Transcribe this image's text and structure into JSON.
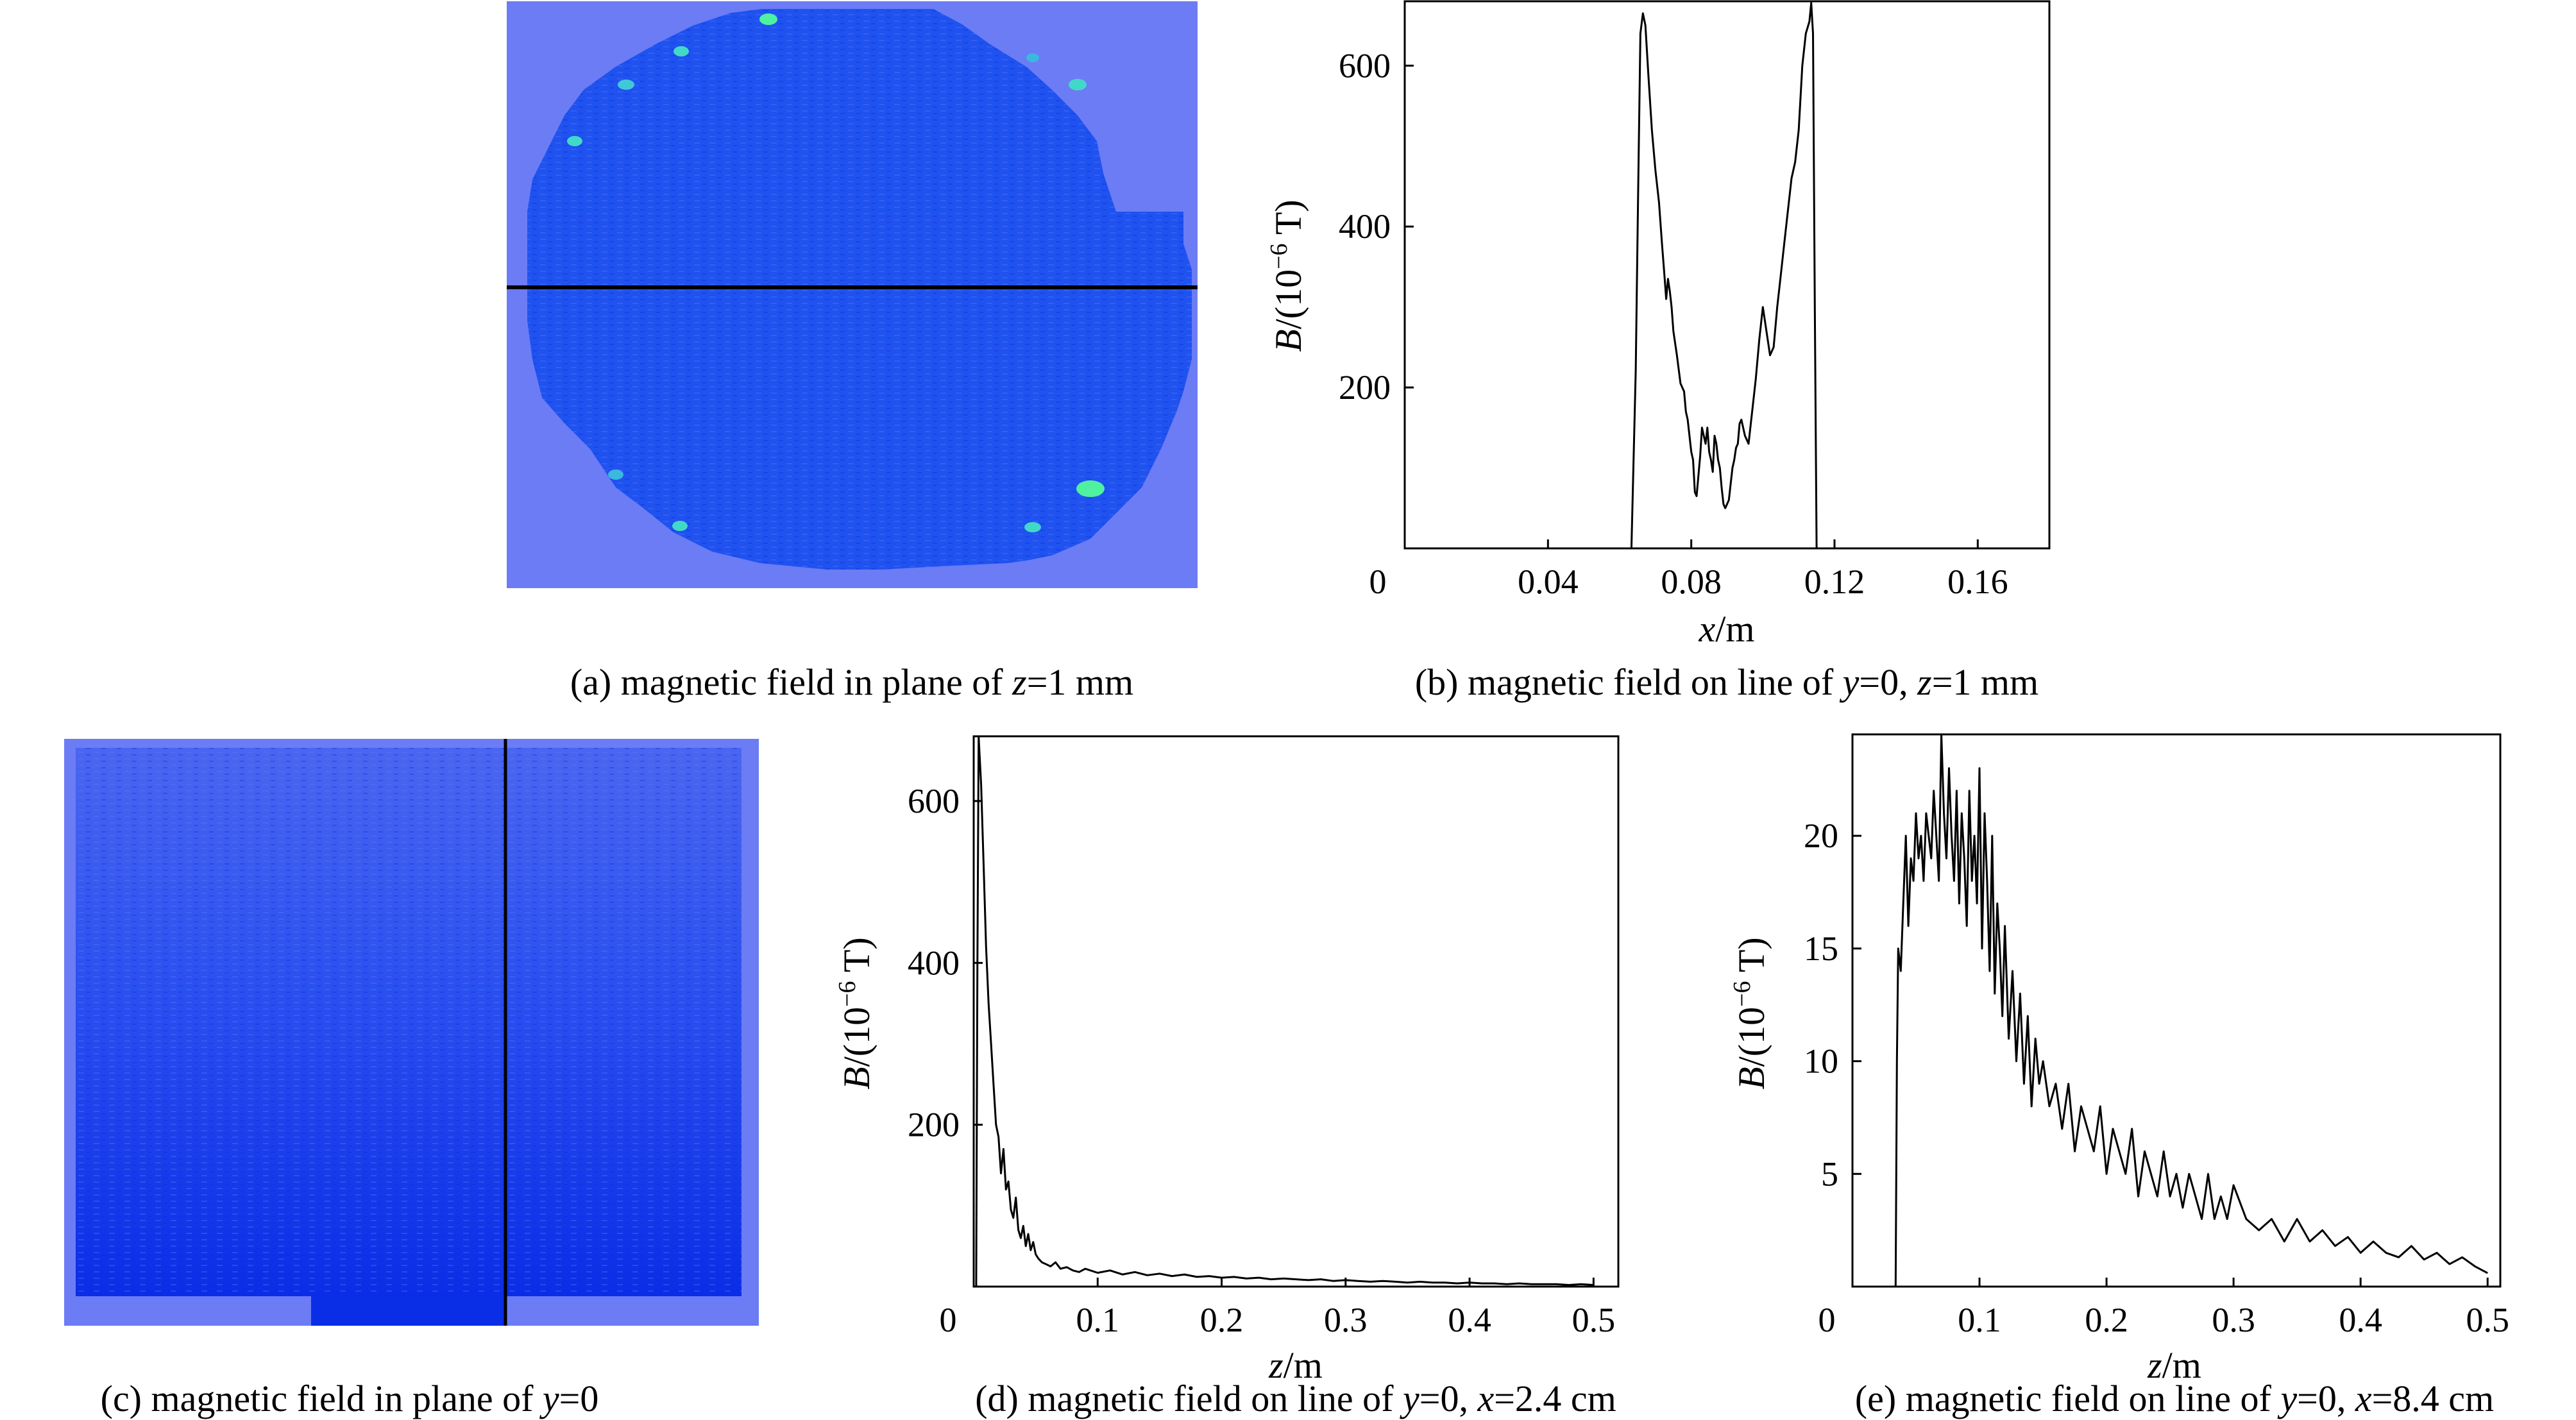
{
  "colors": {
    "background_field": "#6b7cf5",
    "field_low": "#0a2ee6",
    "field_mid": "#1f52ef",
    "field_high": "#4ff0a0",
    "probe_line": "#000000"
  },
  "panels": {
    "a": {
      "caption_prefix": "(a) magnetic field in plane of ",
      "var1": "z",
      "caption_suffix": "=1 mm"
    },
    "b": {
      "caption_prefix": "(b) magnetic field on line of ",
      "var1": "y",
      "mid": "=0, ",
      "var2": "z",
      "caption_suffix": "=1 mm"
    },
    "c": {
      "caption_prefix": "(c) magnetic field in plane of ",
      "var1": "y",
      "caption_suffix": "=0"
    },
    "d": {
      "caption_prefix": "(d) magnetic field on line of ",
      "var1": "y",
      "mid": "=0, ",
      "var2": "x",
      "caption_suffix": "=2.4 cm"
    },
    "e": {
      "caption_prefix": "(e) magnetic field on line of ",
      "var1": "y",
      "mid": "=0, ",
      "var2": "x",
      "caption_suffix": "=8.4 cm"
    }
  },
  "chart_data": [
    {
      "id": "b",
      "type": "line",
      "title": "",
      "xlabel_var": "x",
      "xlabel_unit": "/m",
      "ylabel_var": "B",
      "ylabel_unit": "/(10",
      "ylabel_exp": "−6",
      "ylabel_tail": " T)",
      "xlim": [
        0,
        0.18
      ],
      "ylim": [
        0,
        680
      ],
      "xticks": [
        0.04,
        0.08,
        0.12,
        0.16
      ],
      "xtick_labels": [
        "0.04",
        "0.08",
        "0.12",
        "0.16"
      ],
      "yticks": [
        200,
        400,
        600
      ],
      "ytick_labels": [
        "200",
        "400",
        "600"
      ],
      "origin_label": "0",
      "series": [
        {
          "name": "B",
          "x": [
            0.0633,
            0.0645,
            0.0652,
            0.0658,
            0.0665,
            0.0672,
            0.068,
            0.069,
            0.07,
            0.071,
            0.0718,
            0.0725,
            0.073,
            0.0735,
            0.074,
            0.0745,
            0.075,
            0.076,
            0.077,
            0.078,
            0.0785,
            0.079,
            0.0795,
            0.08,
            0.0805,
            0.081,
            0.0815,
            0.082,
            0.0825,
            0.083,
            0.0835,
            0.084,
            0.0845,
            0.085,
            0.0855,
            0.086,
            0.0865,
            0.087,
            0.0875,
            0.088,
            0.0885,
            0.089,
            0.0895,
            0.09,
            0.0905,
            0.091,
            0.0915,
            0.092,
            0.0925,
            0.093,
            0.0935,
            0.094,
            0.0945,
            0.095,
            0.096,
            0.097,
            0.098,
            0.099,
            0.1,
            0.101,
            0.102,
            0.103,
            0.104,
            0.105,
            0.106,
            0.107,
            0.108,
            0.109,
            0.11,
            0.111,
            0.112,
            0.113,
            0.1135,
            0.114,
            0.1145,
            0.115
          ],
          "values": [
            0,
            220,
            450,
            640,
            665,
            650,
            590,
            520,
            470,
            430,
            380,
            340,
            310,
            335,
            320,
            300,
            270,
            240,
            205,
            195,
            170,
            160,
            140,
            120,
            110,
            70,
            65,
            90,
            115,
            150,
            140,
            130,
            150,
            120,
            110,
            95,
            140,
            130,
            110,
            100,
            75,
            55,
            50,
            55,
            60,
            80,
            100,
            110,
            125,
            130,
            155,
            160,
            150,
            140,
            130,
            170,
            210,
            260,
            300,
            270,
            240,
            250,
            300,
            340,
            380,
            420,
            460,
            480,
            520,
            600,
            640,
            655,
            678,
            640,
            300,
            0
          ]
        }
      ]
    },
    {
      "id": "d",
      "type": "line",
      "title": "",
      "xlabel_var": "z",
      "xlabel_unit": "/m",
      "ylabel_var": "B",
      "ylabel_unit": "/(10",
      "ylabel_exp": "−6",
      "ylabel_tail": " T)",
      "xlim": [
        0,
        0.52
      ],
      "ylim": [
        0,
        680
      ],
      "xticks": [
        0.1,
        0.2,
        0.3,
        0.4,
        0.5
      ],
      "xtick_labels": [
        "0.1",
        "0.2",
        "0.3",
        "0.4",
        "0.5"
      ],
      "yticks": [
        200,
        400,
        600
      ],
      "ytick_labels": [
        "200",
        "400",
        "600"
      ],
      "origin_label": "0",
      "series": [
        {
          "name": "B",
          "x": [
            0.002,
            0.003,
            0.004,
            0.006,
            0.008,
            0.01,
            0.012,
            0.014,
            0.016,
            0.018,
            0.02,
            0.022,
            0.024,
            0.026,
            0.028,
            0.03,
            0.032,
            0.034,
            0.036,
            0.038,
            0.04,
            0.042,
            0.044,
            0.046,
            0.048,
            0.05,
            0.052,
            0.055,
            0.058,
            0.062,
            0.066,
            0.07,
            0.075,
            0.08,
            0.085,
            0.09,
            0.1,
            0.11,
            0.12,
            0.13,
            0.14,
            0.15,
            0.16,
            0.17,
            0.18,
            0.19,
            0.2,
            0.21,
            0.22,
            0.23,
            0.24,
            0.25,
            0.26,
            0.27,
            0.28,
            0.29,
            0.3,
            0.31,
            0.32,
            0.33,
            0.34,
            0.35,
            0.36,
            0.37,
            0.38,
            0.39,
            0.4,
            0.41,
            0.42,
            0.43,
            0.44,
            0.45,
            0.46,
            0.47,
            0.48,
            0.49,
            0.5
          ],
          "values": [
            0,
            400,
            680,
            620,
            520,
            420,
            350,
            300,
            250,
            200,
            185,
            140,
            170,
            120,
            130,
            95,
            85,
            110,
            70,
            60,
            75,
            50,
            65,
            45,
            55,
            40,
            35,
            30,
            28,
            25,
            30,
            22,
            24,
            20,
            18,
            22,
            17,
            20,
            15,
            18,
            14,
            16,
            13,
            15,
            12,
            13,
            11,
            12,
            10,
            11,
            9,
            10,
            9,
            8,
            9,
            7,
            8,
            7,
            6,
            7,
            6,
            5,
            6,
            5,
            5,
            4,
            5,
            4,
            4,
            3,
            4,
            3,
            3,
            3,
            2,
            3,
            2
          ]
        }
      ]
    },
    {
      "id": "e",
      "type": "line",
      "title": "",
      "xlabel_var": "z",
      "xlabel_unit": "/m",
      "ylabel_var": "B",
      "ylabel_unit": "/(10",
      "ylabel_exp": "−6",
      "ylabel_tail": " T)",
      "xlim": [
        0,
        0.51
      ],
      "ylim": [
        0,
        24.5
      ],
      "xticks": [
        0.1,
        0.2,
        0.3,
        0.4,
        0.5
      ],
      "xtick_labels": [
        "0.1",
        "0.2",
        "0.3",
        "0.4",
        "0.5"
      ],
      "yticks": [
        5,
        10,
        15,
        20
      ],
      "ytick_labels": [
        "5",
        "10",
        "15",
        "20"
      ],
      "origin_label": "0",
      "series": [
        {
          "name": "B",
          "x": [
            0.034,
            0.035,
            0.036,
            0.038,
            0.04,
            0.042,
            0.044,
            0.046,
            0.048,
            0.05,
            0.052,
            0.054,
            0.056,
            0.058,
            0.06,
            0.062,
            0.064,
            0.066,
            0.068,
            0.07,
            0.072,
            0.074,
            0.076,
            0.078,
            0.08,
            0.082,
            0.084,
            0.086,
            0.088,
            0.09,
            0.092,
            0.094,
            0.096,
            0.098,
            0.1,
            0.102,
            0.104,
            0.106,
            0.108,
            0.11,
            0.112,
            0.114,
            0.116,
            0.118,
            0.12,
            0.123,
            0.126,
            0.129,
            0.132,
            0.135,
            0.138,
            0.141,
            0.144,
            0.147,
            0.15,
            0.155,
            0.16,
            0.165,
            0.17,
            0.175,
            0.18,
            0.185,
            0.19,
            0.195,
            0.2,
            0.205,
            0.21,
            0.215,
            0.22,
            0.225,
            0.23,
            0.235,
            0.24,
            0.245,
            0.25,
            0.255,
            0.26,
            0.265,
            0.27,
            0.275,
            0.28,
            0.285,
            0.29,
            0.295,
            0.3,
            0.31,
            0.32,
            0.33,
            0.34,
            0.35,
            0.36,
            0.37,
            0.38,
            0.39,
            0.4,
            0.41,
            0.42,
            0.43,
            0.44,
            0.45,
            0.46,
            0.47,
            0.48,
            0.49,
            0.5
          ],
          "values": [
            0,
            10,
            15,
            14,
            17,
            20,
            16,
            19,
            18,
            21,
            19,
            20,
            18,
            21,
            20,
            19,
            22,
            20,
            18,
            24.5,
            21,
            19,
            23,
            20,
            18,
            22,
            17,
            21,
            19,
            16,
            22,
            18,
            20,
            17,
            23,
            15,
            21,
            18,
            14,
            20,
            13,
            17,
            15,
            12,
            16,
            11,
            14,
            10,
            13,
            9,
            12,
            8,
            11,
            9,
            10,
            8,
            9,
            7,
            9,
            6,
            8,
            7,
            6,
            8,
            5,
            7,
            6,
            5,
            7,
            4,
            6,
            5,
            4,
            6,
            4,
            5,
            3.5,
            5,
            4,
            3,
            5,
            3,
            4,
            3,
            4.5,
            3,
            2.5,
            3,
            2,
            3,
            2,
            2.5,
            1.8,
            2.2,
            1.5,
            2,
            1.5,
            1.3,
            1.8,
            1.2,
            1.5,
            1,
            1.3,
            0.9,
            0.6
          ]
        }
      ]
    }
  ]
}
